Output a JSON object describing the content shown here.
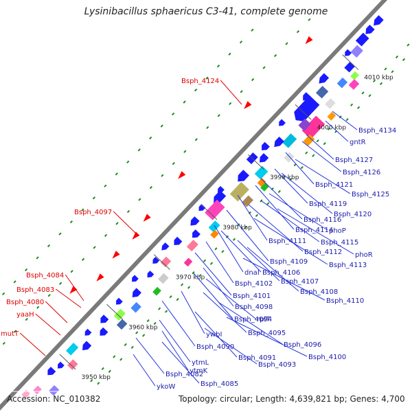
{
  "title": "Lysinibacillus sphaericus C3-41, complete genome",
  "footer": {
    "accession": "Accession: NC_010382",
    "info": "Topology: circular; Length: 4,639,821 bp; Genes: 4,700"
  },
  "colors": {
    "backbone": "#7a7a7a",
    "cds": "#1a1aff",
    "tick": "#1a8c1a",
    "left_label": "#dd0000",
    "right_label": "#1a1aaa",
    "scale_text": "#222222"
  },
  "scale_ticks": [
    "3950 kbp",
    "3960 kbp",
    "3970 kbp",
    "3980 kbp",
    "3990 kbp",
    "4000 kbp",
    "4010 kbp"
  ],
  "left_labels": [
    "Bsph_4124",
    "Bsph_4097",
    "Bsph_4084",
    "Bsph_4083",
    "Bsph_4080",
    "yaaH",
    "mutT"
  ],
  "right_labels": [
    "Bsph_4134",
    "gntR",
    "Bsph_4127",
    "Bsph_4126",
    "Bsph_4121",
    "Bsph_4125",
    "Bsph_4119",
    "Bsph_4120",
    "Bsph_4116",
    "Bsph_4114",
    "phoP",
    "Bsph_4111",
    "Bsph_4115",
    "Bsph_4112",
    "phoR",
    "Bsph_4109",
    "Bsph_4113",
    "dnaI",
    "Bsph_4106",
    "Bsph_4102",
    "Bsph_4107",
    "Bsph_4108",
    "Bsph_4101",
    "Bsph_4110",
    "Bsph_4098",
    "Bsph_4094",
    "rplT",
    "ywbI",
    "Bsph_4095",
    "Bsph_4090",
    "Bsph_4096",
    "Bsph_4091",
    "Bsph_4100",
    "ytmL",
    "Bsph_4093",
    "ytmK",
    "Bsph_4082",
    "Bsph_4085",
    "ykoW"
  ]
}
